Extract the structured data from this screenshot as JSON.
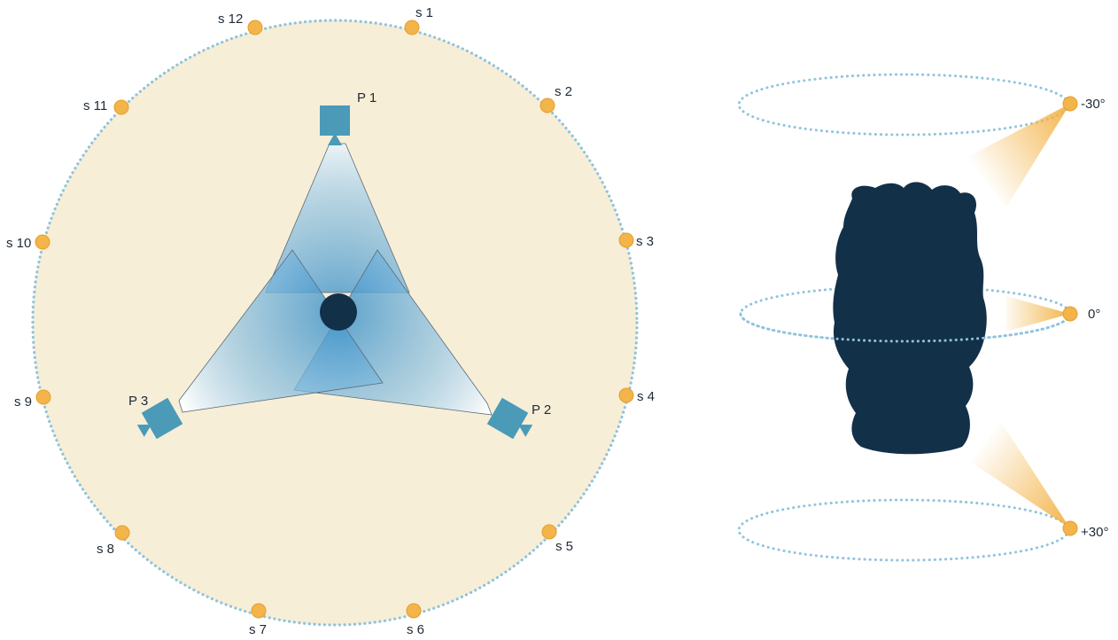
{
  "colors": {
    "stage_fill": "#f7eed7",
    "orbit_dots": "#8fc3dc",
    "station_dot": "#f3b44a",
    "projector": "#4a9ab8",
    "object_silhouette": "#133049",
    "beam_light": "#ffffff",
    "beam_dark": "#3f93c9",
    "label_text": "#1e2a36"
  },
  "top_view": {
    "stations": [
      {
        "label": "s 1"
      },
      {
        "label": "s 2"
      },
      {
        "label": "s 3"
      },
      {
        "label": "s 4"
      },
      {
        "label": "s 5"
      },
      {
        "label": "s 6"
      },
      {
        "label": "s 7"
      },
      {
        "label": "s 8"
      },
      {
        "label": "s 9"
      },
      {
        "label": "s 10"
      },
      {
        "label": "s 11"
      },
      {
        "label": "s 12"
      }
    ],
    "projectors": [
      {
        "label": "P 1"
      },
      {
        "label": "P 2"
      },
      {
        "label": "P 3"
      }
    ]
  },
  "side_view": {
    "elevations": [
      {
        "label": "-30°"
      },
      {
        "label": "0°"
      },
      {
        "label": "+30°"
      }
    ]
  }
}
